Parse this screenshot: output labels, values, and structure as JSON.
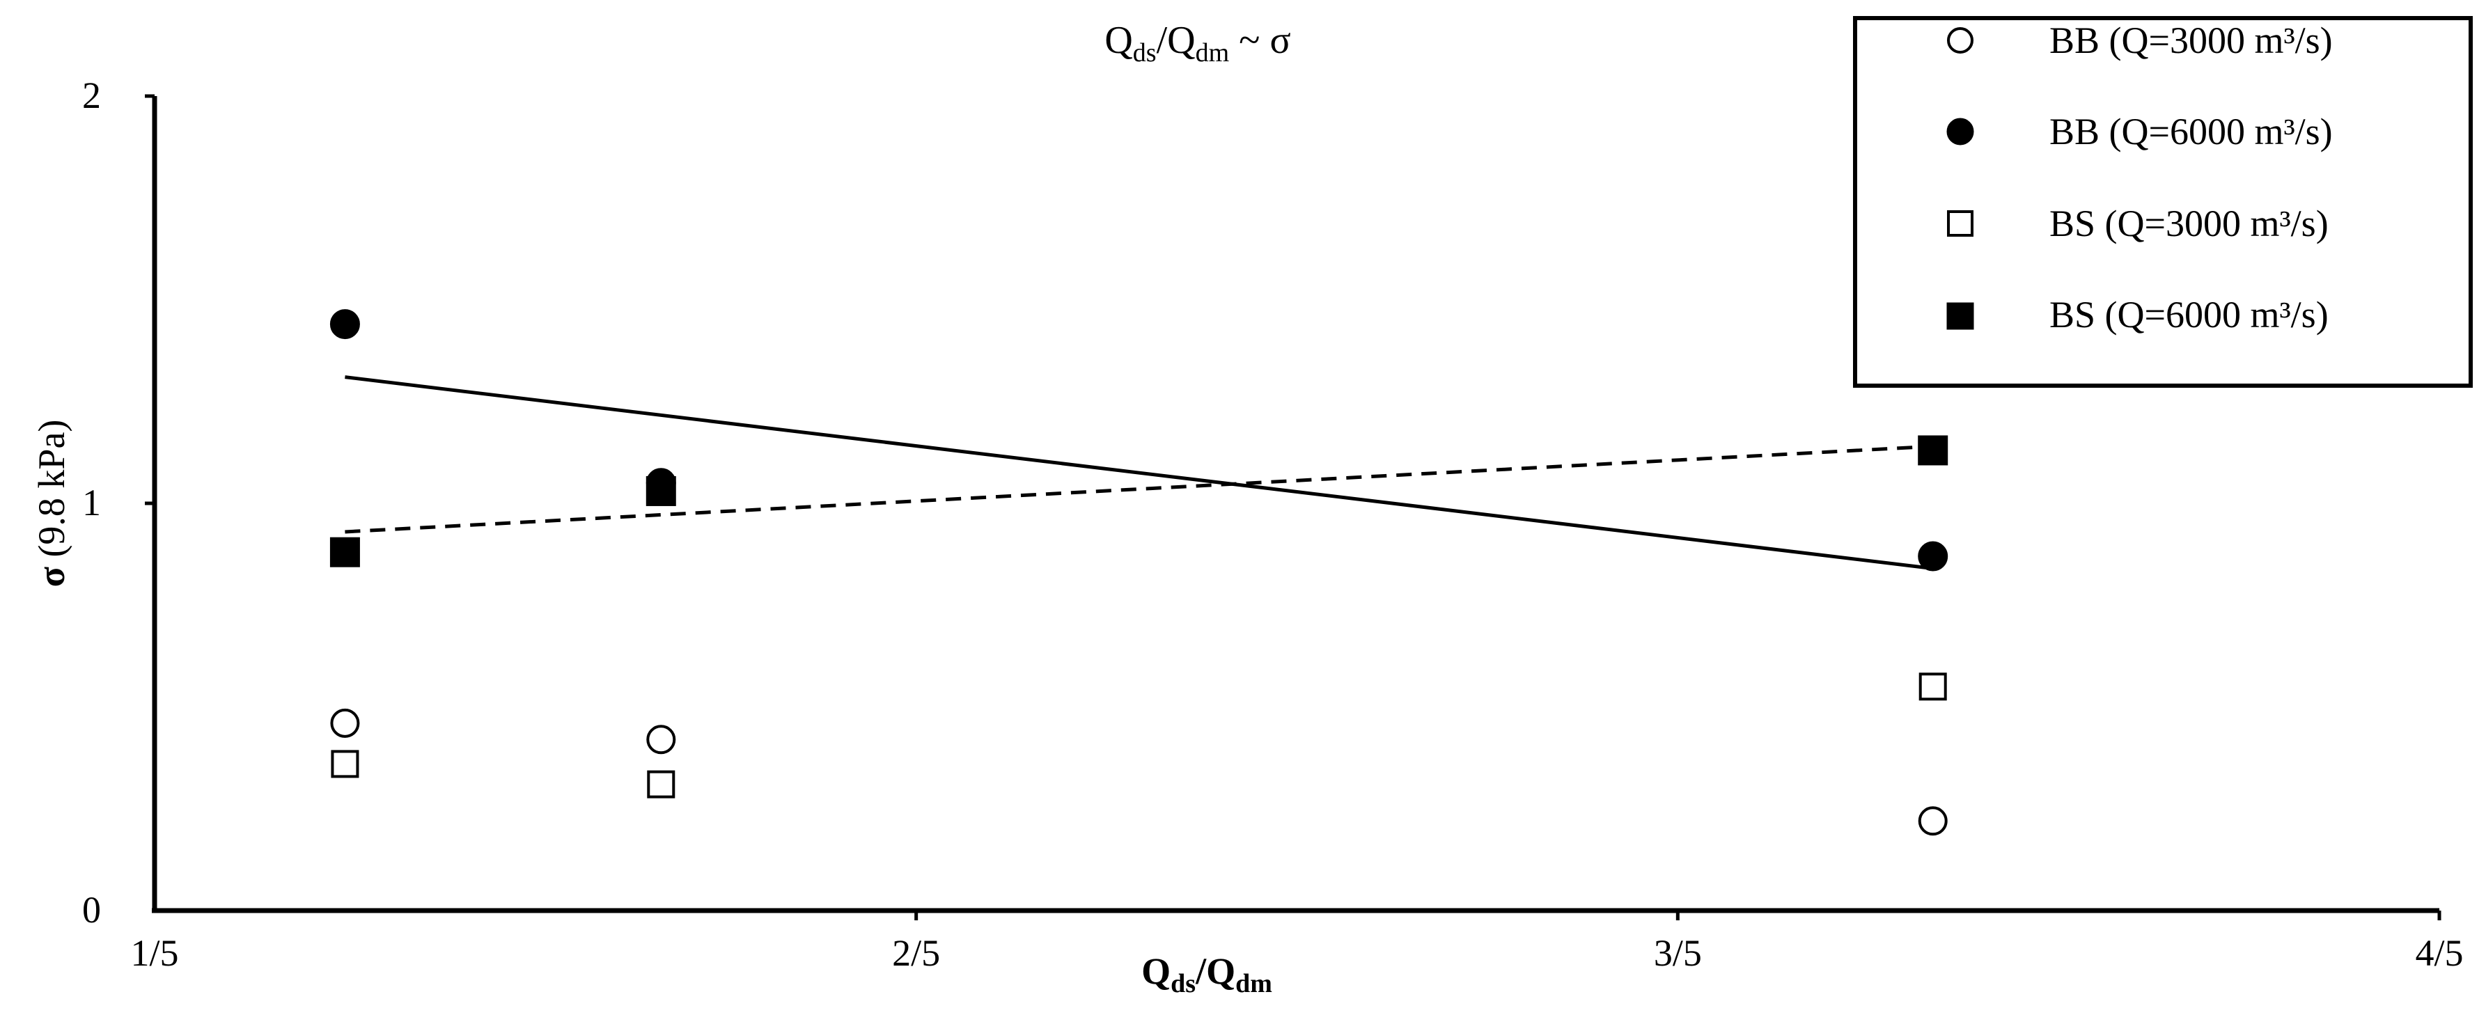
{
  "chart_data": {
    "type": "scatter",
    "title_main": "Q",
    "title_sub1": "ds",
    "title_mid": "/Q",
    "title_sub2": "dm",
    "title_tail": " ~ σ",
    "xlabel_main": "Q",
    "xlabel_sub1": "ds",
    "xlabel_mid": "/Q",
    "xlabel_sub2": "dm",
    "ylabel_symbol": "σ",
    "ylabel_unit": " (9.8 kPa)",
    "xlim": [
      0.2,
      0.8
    ],
    "ylim": [
      0,
      2
    ],
    "x_ticks": [
      {
        "value": 0.2,
        "label": "1/5"
      },
      {
        "value": 0.4,
        "label": "2/5"
      },
      {
        "value": 0.6,
        "label": "3/5"
      },
      {
        "value": 0.8,
        "label": "4/5"
      }
    ],
    "y_ticks": [
      {
        "value": 0,
        "label": "0"
      },
      {
        "value": 1,
        "label": "1"
      },
      {
        "value": 2,
        "label": "2"
      }
    ],
    "grid": false,
    "legend_position": "top-right",
    "series": [
      {
        "name": "BB (Q=3000 m³/s)",
        "marker": "circle",
        "filled": false,
        "points": [
          [
            0.25,
            0.46
          ],
          [
            0.333,
            0.42
          ],
          [
            0.667,
            0.22
          ]
        ]
      },
      {
        "name": "BB (Q=6000 m³/s)",
        "marker": "circle",
        "filled": true,
        "points": [
          [
            0.25,
            1.44
          ],
          [
            0.333,
            1.05
          ],
          [
            0.667,
            0.87
          ]
        ]
      },
      {
        "name": "BS (Q=3000 m³/s)",
        "marker": "square",
        "filled": false,
        "points": [
          [
            0.25,
            0.36
          ],
          [
            0.333,
            0.31
          ],
          [
            0.667,
            0.55
          ]
        ]
      },
      {
        "name": "BS (Q=6000 m³/s)",
        "marker": "square",
        "filled": true,
        "points": [
          [
            0.25,
            0.88
          ],
          [
            0.333,
            1.03
          ],
          [
            0.667,
            1.13
          ]
        ]
      }
    ],
    "trendlines": [
      {
        "style": "solid",
        "points": [
          [
            0.25,
            1.31
          ],
          [
            0.667,
            0.84
          ]
        ]
      },
      {
        "style": "dashed",
        "points": [
          [
            0.25,
            0.93
          ],
          [
            0.667,
            1.14
          ]
        ]
      }
    ]
  }
}
